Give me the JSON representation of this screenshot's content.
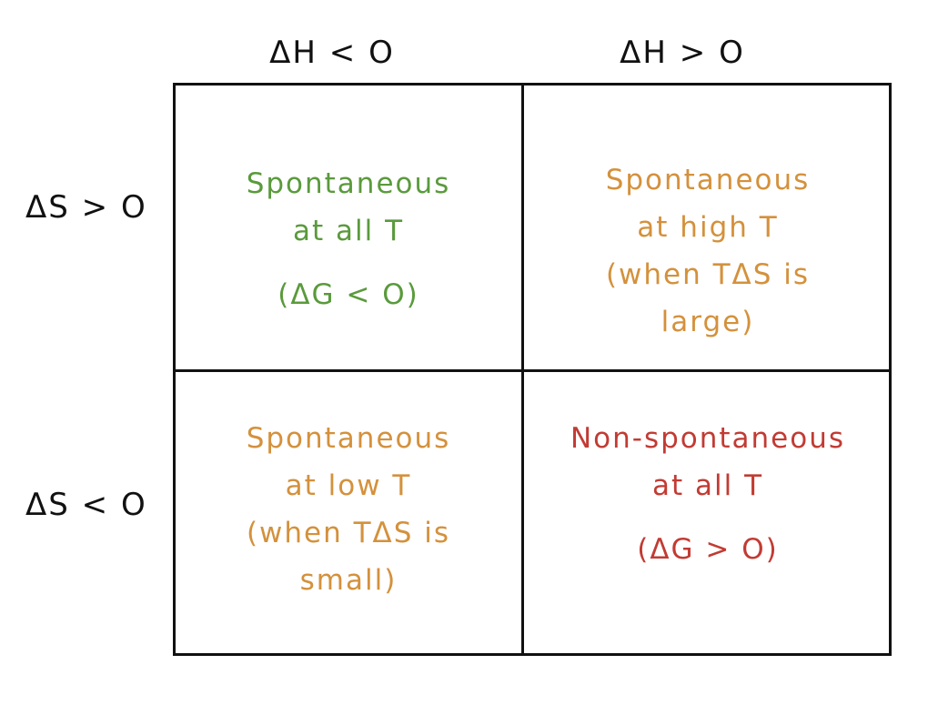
{
  "headers": {
    "col_dh_neg": "ΔH < O",
    "col_dh_pos": "ΔH > O",
    "row_ds_pos": "ΔS > O",
    "row_ds_neg": "ΔS < O"
  },
  "cells": {
    "top_left": {
      "line1": "Spontaneous",
      "line2": "at all T",
      "line3": "(ΔG < O)"
    },
    "top_right": {
      "line1": "Spontaneous",
      "line2": "at high T",
      "line3": "(when TΔS is",
      "line4": "large)"
    },
    "bottom_left": {
      "line1": "Spontaneous",
      "line2": "at low T",
      "line3": "(when TΔS is",
      "line4": "small)"
    },
    "bottom_right": {
      "line1": "Non-spontaneous",
      "line2": "at all T",
      "line3": "(ΔG > O)"
    }
  },
  "colors": {
    "spontaneous_all": "#5a9a3c",
    "conditional": "#d4913c",
    "non_spontaneous": "#c23b33",
    "lines": "#111111"
  }
}
